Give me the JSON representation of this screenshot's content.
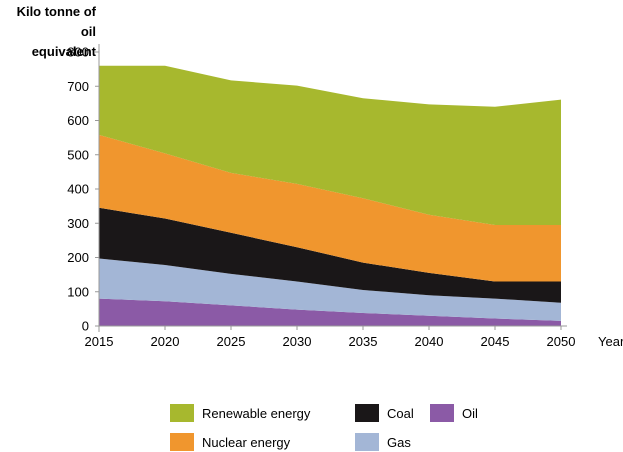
{
  "chart_data": {
    "type": "area",
    "stacked": true,
    "ylabel": "Kilo tonne of oil equivalent",
    "ylabel_lines": [
      "Kilo tonne of oil",
      "equivalent"
    ],
    "xlabel": "Year",
    "ylim": [
      0,
      800
    ],
    "yticks": [
      0,
      100,
      200,
      300,
      400,
      500,
      600,
      700,
      800
    ],
    "x": [
      2015,
      2020,
      2025,
      2030,
      2035,
      2040,
      2045,
      2050
    ],
    "grid": false,
    "legend_position": "bottom",
    "series": [
      {
        "name": "Oil",
        "color": "#8b5aa6",
        "values": [
          80,
          72,
          60,
          48,
          38,
          30,
          22,
          15
        ]
      },
      {
        "name": "Gas",
        "color": "#a3b6d6",
        "values": [
          117,
          106,
          92,
          82,
          67,
          60,
          58,
          53
        ]
      },
      {
        "name": "Coal",
        "color": "#1a1718",
        "values": [
          148,
          136,
          120,
          100,
          80,
          65,
          50,
          62
        ]
      },
      {
        "name": "Nuclear energy",
        "color": "#f0962e",
        "values": [
          213,
          190,
          175,
          185,
          188,
          170,
          165,
          165
        ]
      },
      {
        "name": "Renewable energy",
        "color": "#a7b82e",
        "values": [
          202,
          256,
          270,
          287,
          292,
          322,
          345,
          366
        ]
      }
    ],
    "legend": [
      {
        "label": "Renewable energy",
        "color": "#a7b82e"
      },
      {
        "label": "Coal",
        "color": "#1a1718"
      },
      {
        "label": "Oil",
        "color": "#8b5aa6"
      },
      {
        "label": "Nuclear energy",
        "color": "#f0962e"
      },
      {
        "label": "Gas",
        "color": "#a3b6d6"
      }
    ]
  }
}
